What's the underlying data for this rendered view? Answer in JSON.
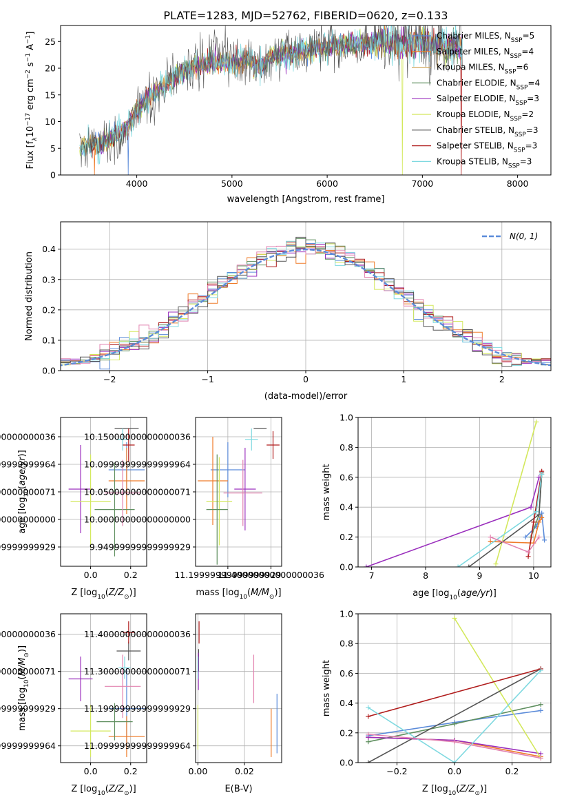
{
  "colors": {
    "chabrier_miles": "#5b8bd9",
    "salpeter_miles": "#ef7c2a",
    "kroupa_miles": "#d0a55a",
    "chabrier_elodie": "#5f8f5f",
    "salpeter_elodie": "#9a2fbd",
    "kroupa_elodie": "#d3e85c",
    "chabrier_stelib": "#555555",
    "salpeter_stelib": "#b01c1c",
    "kroupa_stelib": "#7fd9e0",
    "pink": "#e282b0",
    "normal": "#5b8bd9"
  },
  "chart_data": [
    {
      "id": "spectrum",
      "type": "line",
      "title": "PLATE=1283, MJD=52762, FIBERID=0620, z=0.133",
      "xlabel": "wavelength [Angstrom, rest frame]",
      "ylabel": "Flux [f_λ10^-17 erg cm^-2 s^-1 A^-1]",
      "xlim": [
        3200,
        8350
      ],
      "ylim": [
        0,
        28
      ],
      "xticks": [
        4000,
        5000,
        6000,
        7000,
        8000
      ],
      "yticks": [
        0,
        5,
        10,
        15,
        20,
        25
      ],
      "grid": false,
      "legend_position": "right",
      "legend": [
        {
          "label": "Chabrier MILES, N_SSP=5",
          "text": "Chabrier MILES, N",
          "sub": "SSP",
          "tail": "=5",
          "color": "#5b8bd9"
        },
        {
          "label": "Salpeter MILES, N_SSP=4",
          "text": "Salpeter MILES, N",
          "sub": "SSP",
          "tail": "=4",
          "color": "#ef7c2a"
        },
        {
          "label": "Kroupa MILES, N_SSP=6",
          "text": "Kroupa MILES, N",
          "sub": "SSP",
          "tail": "=6",
          "color": "#d0a55a"
        },
        {
          "label": "Chabrier ELODIE, N_SSP=4",
          "text": "Chabrier ELODIE, N",
          "sub": "SSP",
          "tail": "=4",
          "color": "#5f8f5f"
        },
        {
          "label": "Salpeter ELODIE, N_SSP=3",
          "text": "Salpeter ELODIE, N",
          "sub": "SSP",
          "tail": "=3",
          "color": "#9a2fbd"
        },
        {
          "label": "Kroupa ELODIE, N_SSP=2",
          "text": "Kroupa ELODIE, N",
          "sub": "SSP",
          "tail": "=2",
          "color": "#d3e85c"
        },
        {
          "label": "Chabrier STELIB, N_SSP=3",
          "text": "Chabrier STELIB, N",
          "sub": "SSP",
          "tail": "=3",
          "color": "#555555"
        },
        {
          "label": "Salpeter STELIB, N_SSP=3",
          "text": "Salpeter STELIB, N",
          "sub": "SSP",
          "tail": "=3",
          "color": "#b01c1c"
        },
        {
          "label": "Kroupa STELIB, N_SSP=3",
          "text": "Kroupa STELIB, N",
          "sub": "SSP",
          "tail": "=3",
          "color": "#7fd9e0"
        }
      ],
      "continuum_x": [
        3350,
        3500,
        3700,
        3900,
        4000,
        4100,
        4200,
        4300,
        4400,
        4500,
        4600,
        4700,
        4800,
        4900,
        5000,
        5100,
        5200,
        5300,
        5400,
        5500,
        5600,
        5700,
        5800,
        5900,
        6000,
        6200,
        6400,
        6600,
        6800,
        7000,
        7200,
        7400
      ],
      "continuum_y": [
        5,
        5.5,
        6.5,
        9,
        12,
        14,
        15.5,
        17,
        18.5,
        19.5,
        20.5,
        20.5,
        21,
        21,
        21,
        21.5,
        21.5,
        20,
        22,
        22.5,
        22.5,
        23,
        23.5,
        24,
        24,
        24.5,
        24.5,
        25,
        24.5,
        25,
        24,
        24
      ]
    },
    {
      "id": "residuals",
      "type": "bar",
      "xlabel": "(data-model)/error",
      "ylabel": "Normed distribution",
      "xlim": [
        -2.5,
        2.5
      ],
      "ylim": [
        0,
        0.49
      ],
      "xticks": [
        -2,
        -1,
        0,
        1,
        2
      ],
      "yticks": [
        0.0,
        0.1,
        0.2,
        0.3,
        0.4
      ],
      "grid": true,
      "legend_position": "top-right",
      "legend": [
        {
          "label": "N(0,1)",
          "color": "#5b8bd9"
        }
      ],
      "bin_width": 0.1,
      "bin_start": -2.5
    },
    {
      "id": "age_vs_Z",
      "type": "scatter",
      "xlabel": "Z [log10(Z/Z⊙)]",
      "ylabel": "age  [log10(age/yr)]",
      "xlim": [
        -0.15,
        0.28
      ],
      "ylim": [
        9.915,
        10.185
      ],
      "xticks": [
        0.0,
        0.2
      ],
      "yticks": [
        9.95,
        10.0,
        10.05,
        10.1,
        10.15
      ],
      "grid": true,
      "points": [
        {
          "x": 0.18,
          "y": 10.09,
          "xe": 0.09,
          "ye": 0.05,
          "color": "#5b8bd9"
        },
        {
          "x": 0.18,
          "y": 10.07,
          "xe": 0.09,
          "ye": 0.06,
          "color": "#ef7c2a"
        },
        {
          "x": -0.05,
          "y": 10.055,
          "xe": 0.06,
          "ye": 0.08,
          "color": "#9a2fbd"
        },
        {
          "x": 0.0,
          "y": 10.033,
          "xe": 0.1,
          "ye": 0.085,
          "color": "#d3e85c"
        },
        {
          "x": 0.12,
          "y": 10.018,
          "xe": 0.1,
          "ye": 0.085,
          "color": "#5f8f5f"
        },
        {
          "x": 0.16,
          "y": 10.048,
          "xe": 0.09,
          "ye": 0.06,
          "color": "#e282b0"
        },
        {
          "x": 0.18,
          "y": 10.165,
          "xe": 0.06,
          "ye": 0.0,
          "color": "#555555"
        },
        {
          "x": 0.16,
          "y": 10.145,
          "xe": 0.03,
          "ye": 0.02,
          "color": "#7fd9e0"
        },
        {
          "x": 0.19,
          "y": 10.135,
          "xe": 0.03,
          "ye": 0.03,
          "color": "#b01c1c"
        }
      ]
    },
    {
      "id": "age_vs_mass",
      "type": "scatter",
      "xlabel": "mass [log10(M/M⊙)]",
      "ylabel": "",
      "xlim": [
        11.05,
        11.45
      ],
      "ylim": [
        9.915,
        10.185
      ],
      "xticks": [
        11.2,
        11.4
      ],
      "yticks": [
        9.95,
        10.0,
        10.05,
        10.1,
        10.15
      ],
      "grid": true,
      "points": [
        {
          "x": 11.2,
          "y": 10.09,
          "xe": 0.08,
          "ye": 0.05,
          "color": "#5b8bd9"
        },
        {
          "x": 11.13,
          "y": 10.07,
          "xe": 0.07,
          "ye": 0.08,
          "color": "#ef7c2a"
        },
        {
          "x": 11.28,
          "y": 10.055,
          "xe": 0.05,
          "ye": 0.075,
          "color": "#9a2fbd"
        },
        {
          "x": 11.16,
          "y": 10.033,
          "xe": 0.06,
          "ye": 0.08,
          "color": "#d3e85c"
        },
        {
          "x": 11.15,
          "y": 10.018,
          "xe": 0.05,
          "ye": 0.1,
          "color": "#5f8f5f"
        },
        {
          "x": 11.27,
          "y": 10.048,
          "xe": 0.09,
          "ye": 0.06,
          "color": "#e282b0"
        },
        {
          "x": 11.35,
          "y": 10.165,
          "xe": 0.03,
          "ye": 0.0,
          "color": "#555555"
        },
        {
          "x": 11.31,
          "y": 10.145,
          "xe": 0.03,
          "ye": 0.02,
          "color": "#7fd9e0"
        },
        {
          "x": 11.41,
          "y": 10.135,
          "xe": 0.03,
          "ye": 0.025,
          "color": "#b01c1c"
        }
      ]
    },
    {
      "id": "weight_vs_age",
      "type": "line",
      "xlabel": "age  [log10(age/yr)]",
      "ylabel": "mass weight",
      "xlim": [
        6.75,
        10.32
      ],
      "ylim": [
        0,
        1.0
      ],
      "xticks": [
        7,
        8,
        9,
        10
      ],
      "yticks": [
        0.0,
        0.2,
        0.4,
        0.6,
        0.8,
        1.0
      ],
      "grid": true,
      "series": [
        {
          "x": [
            9.85,
            10.05,
            10.15,
            10.2
          ],
          "y": [
            0.2,
            0.27,
            0.36,
            0.18
          ],
          "color": "#5b8bd9"
        },
        {
          "x": [
            9.2,
            10.0,
            10.1,
            10.15
          ],
          "y": [
            0.17,
            0.16,
            0.3,
            0.33
          ],
          "color": "#ef7c2a"
        },
        {
          "x": [
            9.95,
            10.1,
            10.15
          ],
          "y": [
            0.2,
            0.35,
            0.62
          ],
          "color": "#5f8f5f"
        },
        {
          "x": [
            6.9,
            9.95,
            10.1
          ],
          "y": [
            0.0,
            0.4,
            0.6
          ],
          "color": "#9a2fbd"
        },
        {
          "x": [
            9.3,
            10.05
          ],
          "y": [
            0.02,
            0.97
          ],
          "color": "#d3e85c"
        },
        {
          "x": [
            8.8,
            10.1,
            10.15
          ],
          "y": [
            0.0,
            0.35,
            0.63
          ],
          "color": "#555555"
        },
        {
          "x": [
            9.9,
            10.0,
            10.15
          ],
          "y": [
            0.07,
            0.3,
            0.64
          ],
          "color": "#b01c1c"
        },
        {
          "x": [
            8.6,
            10.05,
            10.15
          ],
          "y": [
            0.0,
            0.37,
            0.62
          ],
          "color": "#7fd9e0"
        },
        {
          "x": [
            9.2,
            9.9,
            10.1
          ],
          "y": [
            0.2,
            0.1,
            0.2
          ],
          "color": "#e282b0"
        }
      ]
    },
    {
      "id": "mass_vs_Z",
      "type": "scatter",
      "xlabel": "Z [log10(Z/Z⊙)]",
      "ylabel": "mass [log10(M/M⊙)]",
      "xlim": [
        -0.15,
        0.28
      ],
      "ylim": [
        11.055,
        11.455
      ],
      "xticks": [
        0.0,
        0.2
      ],
      "yticks": [
        11.1,
        11.2,
        11.3,
        11.4
      ],
      "grid": true,
      "points": [
        {
          "x": 0.18,
          "y": 11.2,
          "xe": 0.09,
          "ye": 0.11,
          "color": "#5b8bd9"
        },
        {
          "x": 0.18,
          "y": 11.125,
          "xe": 0.09,
          "ye": 0.055,
          "color": "#ef7c2a"
        },
        {
          "x": -0.05,
          "y": 11.28,
          "xe": 0.06,
          "ye": 0.06,
          "color": "#9a2fbd"
        },
        {
          "x": 0.0,
          "y": 11.14,
          "xe": 0.1,
          "ye": 0.07,
          "color": "#d3e85c"
        },
        {
          "x": 0.12,
          "y": 11.165,
          "xe": 0.09,
          "ye": 0.05,
          "color": "#5f8f5f"
        },
        {
          "x": 0.16,
          "y": 11.26,
          "xe": 0.09,
          "ye": 0.085,
          "color": "#e282b0"
        },
        {
          "x": 0.19,
          "y": 11.355,
          "xe": 0.06,
          "ye": 0.025,
          "color": "#555555"
        },
        {
          "x": 0.17,
          "y": 11.31,
          "xe": 0.03,
          "ye": 0.03,
          "color": "#7fd9e0"
        },
        {
          "x": 0.19,
          "y": 11.405,
          "xe": 0.03,
          "ye": 0.03,
          "color": "#b01c1c"
        }
      ]
    },
    {
      "id": "mass_vs_ebv",
      "type": "scatter",
      "xlabel": "E(B-V)",
      "ylabel": "",
      "xlim": [
        -0.001,
        0.036
      ],
      "ylim": [
        11.055,
        11.455
      ],
      "xticks": [
        0.0,
        0.02
      ],
      "yticks": [
        11.1,
        11.2,
        11.3,
        11.4
      ],
      "grid": true,
      "points": [
        {
          "x": 0.0005,
          "y": 11.405,
          "xe": 0,
          "ye": 0.03,
          "color": "#b01c1c"
        },
        {
          "x": 0.0003,
          "y": 11.33,
          "xe": 0,
          "ye": 0.03,
          "color": "#555555"
        },
        {
          "x": 0.0002,
          "y": 11.3,
          "xe": 0,
          "ye": 0.05,
          "color": "#9a2fbd"
        },
        {
          "x": 0.0,
          "y": 11.31,
          "xe": 0,
          "ye": 0.03,
          "color": "#7fd9e0"
        },
        {
          "x": 0.0,
          "y": 11.15,
          "xe": 0,
          "ye": 0.06,
          "color": "#d3e85c"
        },
        {
          "x": 0.024,
          "y": 11.28,
          "xe": 0,
          "ye": 0.065,
          "color": "#e282b0"
        },
        {
          "x": 0.0315,
          "y": 11.135,
          "xe": 0,
          "ye": 0.065,
          "color": "#ef7c2a"
        },
        {
          "x": 0.034,
          "y": 11.16,
          "xe": 0,
          "ye": 0.08,
          "color": "#5b8bd9"
        }
      ]
    },
    {
      "id": "weight_vs_Z",
      "type": "line",
      "xlabel": "Z [log10(Z/Z⊙)]",
      "ylabel": "mass weight",
      "xlim": [
        -0.335,
        0.335
      ],
      "ylim": [
        0,
        1.0
      ],
      "xticks": [
        -0.2,
        0.0,
        0.2
      ],
      "yticks": [
        0.0,
        0.2,
        0.4,
        0.6,
        0.8,
        1.0
      ],
      "grid": true,
      "series": [
        {
          "x": [
            -0.3,
            0.0,
            0.3
          ],
          "y": [
            0.18,
            0.27,
            0.35
          ],
          "color": "#5b8bd9"
        },
        {
          "x": [
            -0.3,
            0.0,
            0.3
          ],
          "y": [
            0.17,
            0.15,
            0.04
          ],
          "color": "#ef7c2a"
        },
        {
          "x": [
            -0.3,
            0.0,
            0.3
          ],
          "y": [
            0.14,
            0.26,
            0.39
          ],
          "color": "#5f8f5f"
        },
        {
          "x": [
            -0.3,
            0.0,
            0.3
          ],
          "y": [
            0.17,
            0.15,
            0.06
          ],
          "color": "#9a2fbd"
        },
        {
          "x": [
            0.0,
            0.3
          ],
          "y": [
            0.97,
            0.03
          ],
          "color": "#d3e85c"
        },
        {
          "x": [
            -0.3,
            0.3
          ],
          "y": [
            0.0,
            0.63
          ],
          "color": "#555555"
        },
        {
          "x": [
            -0.3,
            0.3
          ],
          "y": [
            0.31,
            0.63
          ],
          "color": "#b01c1c"
        },
        {
          "x": [
            -0.3,
            0.0,
            0.3
          ],
          "y": [
            0.37,
            0.0,
            0.62
          ],
          "color": "#7fd9e0"
        },
        {
          "x": [
            -0.3,
            0.0,
            0.3
          ],
          "y": [
            0.19,
            0.14,
            0.03
          ],
          "color": "#e282b0"
        }
      ]
    }
  ]
}
